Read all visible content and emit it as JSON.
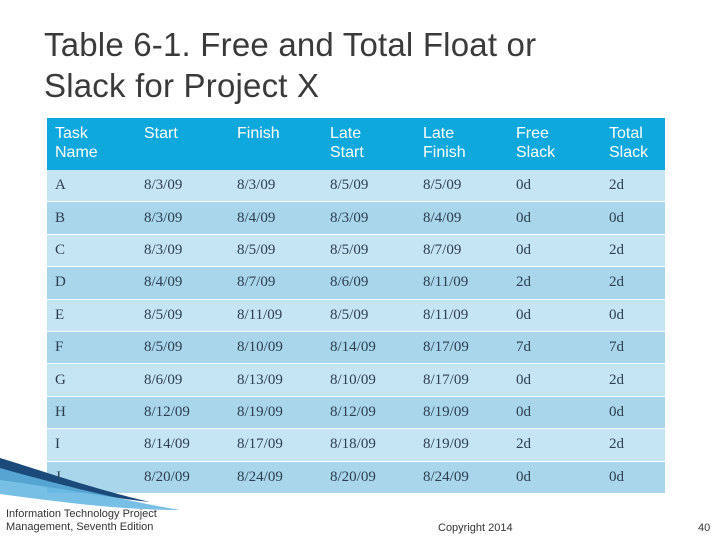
{
  "slide": {
    "title_line1": "Table 6-1. Free and Total Float or",
    "title_line2": "Slack for Project X"
  },
  "table": {
    "headers": [
      [
        "Task",
        "Name"
      ],
      [
        "Start",
        ""
      ],
      [
        "Finish",
        ""
      ],
      [
        "Late",
        "Start"
      ],
      [
        "Late",
        "Finish"
      ],
      [
        "Free",
        "Slack"
      ],
      [
        "Total",
        "Slack"
      ]
    ],
    "rows": [
      [
        "A",
        "8/3/09",
        "8/3/09",
        "8/5/09",
        "8/5/09",
        "0d",
        "2d"
      ],
      [
        "B",
        "8/3/09",
        "8/4/09",
        "8/3/09",
        "8/4/09",
        "0d",
        "0d"
      ],
      [
        "C",
        "8/3/09",
        "8/5/09",
        "8/5/09",
        "8/7/09",
        "0d",
        "2d"
      ],
      [
        "D",
        "8/4/09",
        "8/7/09",
        "8/6/09",
        "8/11/09",
        "2d",
        "2d"
      ],
      [
        "E",
        "8/5/09",
        "8/11/09",
        "8/5/09",
        "8/11/09",
        "0d",
        "0d"
      ],
      [
        "F",
        "8/5/09",
        "8/10/09",
        "8/14/09",
        "8/17/09",
        "7d",
        "7d"
      ],
      [
        "G",
        "8/6/09",
        "8/13/09",
        "8/10/09",
        "8/17/09",
        "0d",
        "2d"
      ],
      [
        "H",
        "8/12/09",
        "8/19/09",
        "8/12/09",
        "8/19/09",
        "0d",
        "0d"
      ],
      [
        "I",
        "8/14/09",
        "8/17/09",
        "8/18/09",
        "8/19/09",
        "2d",
        "2d"
      ],
      [
        "J",
        "8/20/09",
        "8/24/09",
        "8/20/09",
        "8/24/09",
        "0d",
        "0d"
      ]
    ]
  },
  "footer": {
    "book_line1": "Information Technology Project",
    "book_line2": "Management, Seventh Edition",
    "copyright": "Copyright 2014",
    "page_number": "40"
  },
  "colors": {
    "header_bg": "#0fa8dc",
    "row_light": "#c6e5f2",
    "row_dark": "#a9d6ea",
    "swoosh_dark": "#1b4a7a",
    "swoosh_light": "#5fb4e0"
  }
}
